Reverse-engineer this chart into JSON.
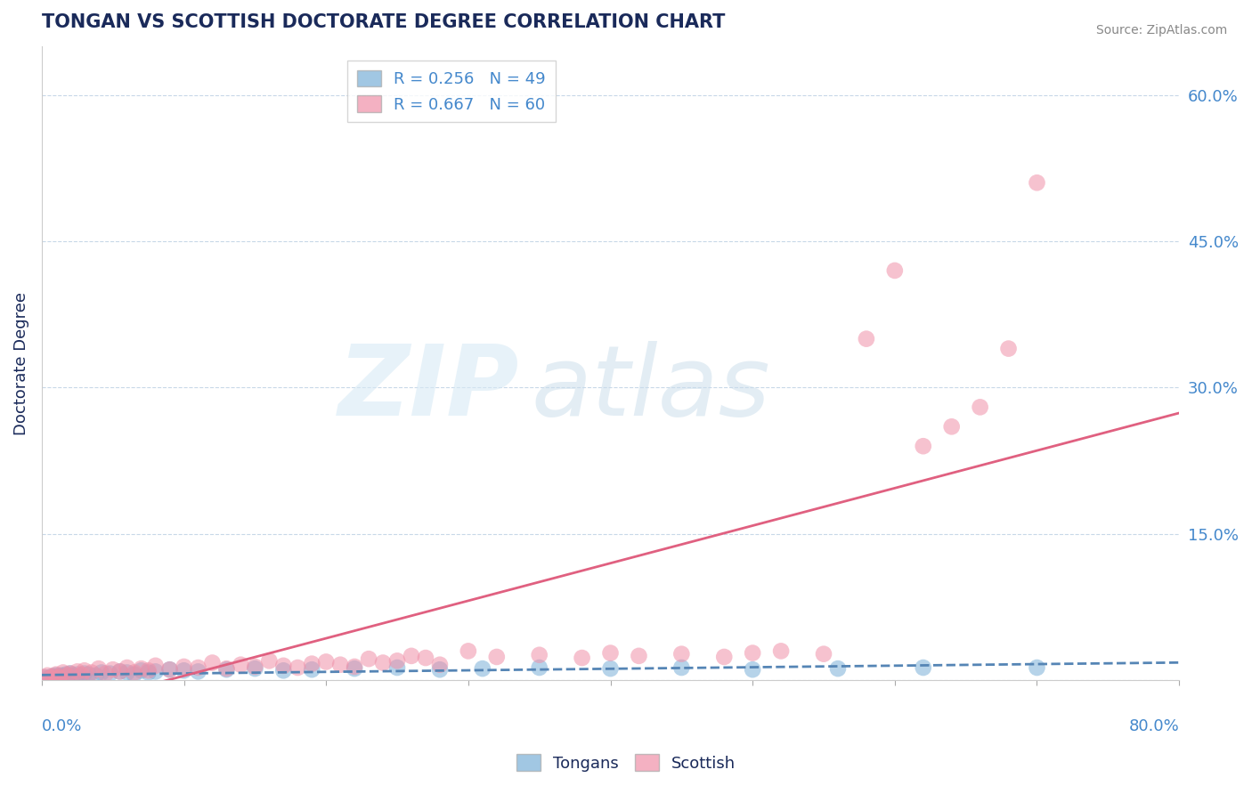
{
  "title": "TONGAN VS SCOTTISH DOCTORATE DEGREE CORRELATION CHART",
  "source": "Source: ZipAtlas.com",
  "ylabel": "Doctorate Degree",
  "y_ticks": [
    0.0,
    0.15,
    0.3,
    0.45,
    0.6
  ],
  "y_tick_labels": [
    "",
    "15.0%",
    "30.0%",
    "45.0%",
    "60.0%"
  ],
  "x_lim": [
    0.0,
    0.8
  ],
  "y_lim": [
    0.0,
    0.65
  ],
  "legend_entries": [
    {
      "label": "R = 0.256   N = 49",
      "color": "#a8c4e0"
    },
    {
      "label": "R = 0.667   N = 60",
      "color": "#f4a0b0"
    }
  ],
  "tongans_color": "#7ab0d8",
  "scottish_color": "#f090a8",
  "trend_tongans_color": "#5585b5",
  "trend_scottish_color": "#e06080",
  "tongans_x": [
    0.002,
    0.003,
    0.005,
    0.007,
    0.008,
    0.009,
    0.01,
    0.011,
    0.012,
    0.013,
    0.014,
    0.015,
    0.016,
    0.017,
    0.018,
    0.019,
    0.02,
    0.022,
    0.025,
    0.027,
    0.03,
    0.033,
    0.038,
    0.042,
    0.048,
    0.055,
    0.06,
    0.065,
    0.07,
    0.075,
    0.08,
    0.09,
    0.1,
    0.11,
    0.13,
    0.15,
    0.17,
    0.19,
    0.22,
    0.25,
    0.28,
    0.31,
    0.35,
    0.4,
    0.45,
    0.5,
    0.56,
    0.62,
    0.7
  ],
  "tongans_y": [
    0.003,
    0.001,
    0.002,
    0.004,
    0.002,
    0.003,
    0.005,
    0.002,
    0.004,
    0.003,
    0.005,
    0.004,
    0.003,
    0.006,
    0.004,
    0.005,
    0.007,
    0.005,
    0.006,
    0.004,
    0.007,
    0.006,
    0.005,
    0.008,
    0.007,
    0.009,
    0.008,
    0.006,
    0.01,
    0.008,
    0.009,
    0.011,
    0.01,
    0.009,
    0.011,
    0.012,
    0.01,
    0.011,
    0.012,
    0.013,
    0.011,
    0.012,
    0.013,
    0.012,
    0.013,
    0.011,
    0.012,
    0.013,
    0.013
  ],
  "scottish_x": [
    0.002,
    0.004,
    0.006,
    0.008,
    0.01,
    0.012,
    0.015,
    0.018,
    0.02,
    0.025,
    0.028,
    0.03,
    0.035,
    0.04,
    0.045,
    0.05,
    0.055,
    0.06,
    0.065,
    0.07,
    0.075,
    0.08,
    0.09,
    0.1,
    0.11,
    0.12,
    0.13,
    0.14,
    0.15,
    0.16,
    0.17,
    0.18,
    0.19,
    0.2,
    0.21,
    0.22,
    0.23,
    0.24,
    0.25,
    0.26,
    0.27,
    0.28,
    0.3,
    0.32,
    0.35,
    0.38,
    0.4,
    0.42,
    0.45,
    0.48,
    0.5,
    0.52,
    0.55,
    0.58,
    0.6,
    0.62,
    0.64,
    0.66,
    0.68,
    0.7
  ],
  "scottish_y": [
    0.003,
    0.005,
    0.002,
    0.004,
    0.006,
    0.003,
    0.008,
    0.005,
    0.007,
    0.009,
    0.006,
    0.01,
    0.008,
    0.012,
    0.007,
    0.011,
    0.009,
    0.013,
    0.008,
    0.012,
    0.01,
    0.015,
    0.011,
    0.014,
    0.013,
    0.018,
    0.012,
    0.016,
    0.014,
    0.02,
    0.015,
    0.013,
    0.017,
    0.019,
    0.016,
    0.014,
    0.022,
    0.018,
    0.02,
    0.025,
    0.023,
    0.016,
    0.03,
    0.024,
    0.026,
    0.023,
    0.028,
    0.025,
    0.027,
    0.024,
    0.028,
    0.03,
    0.027,
    0.35,
    0.42,
    0.24,
    0.26,
    0.28,
    0.34,
    0.51
  ],
  "background_color": "#ffffff",
  "grid_color": "#c8d8e8",
  "title_color": "#1a2a5a",
  "axis_label_color": "#4488cc"
}
